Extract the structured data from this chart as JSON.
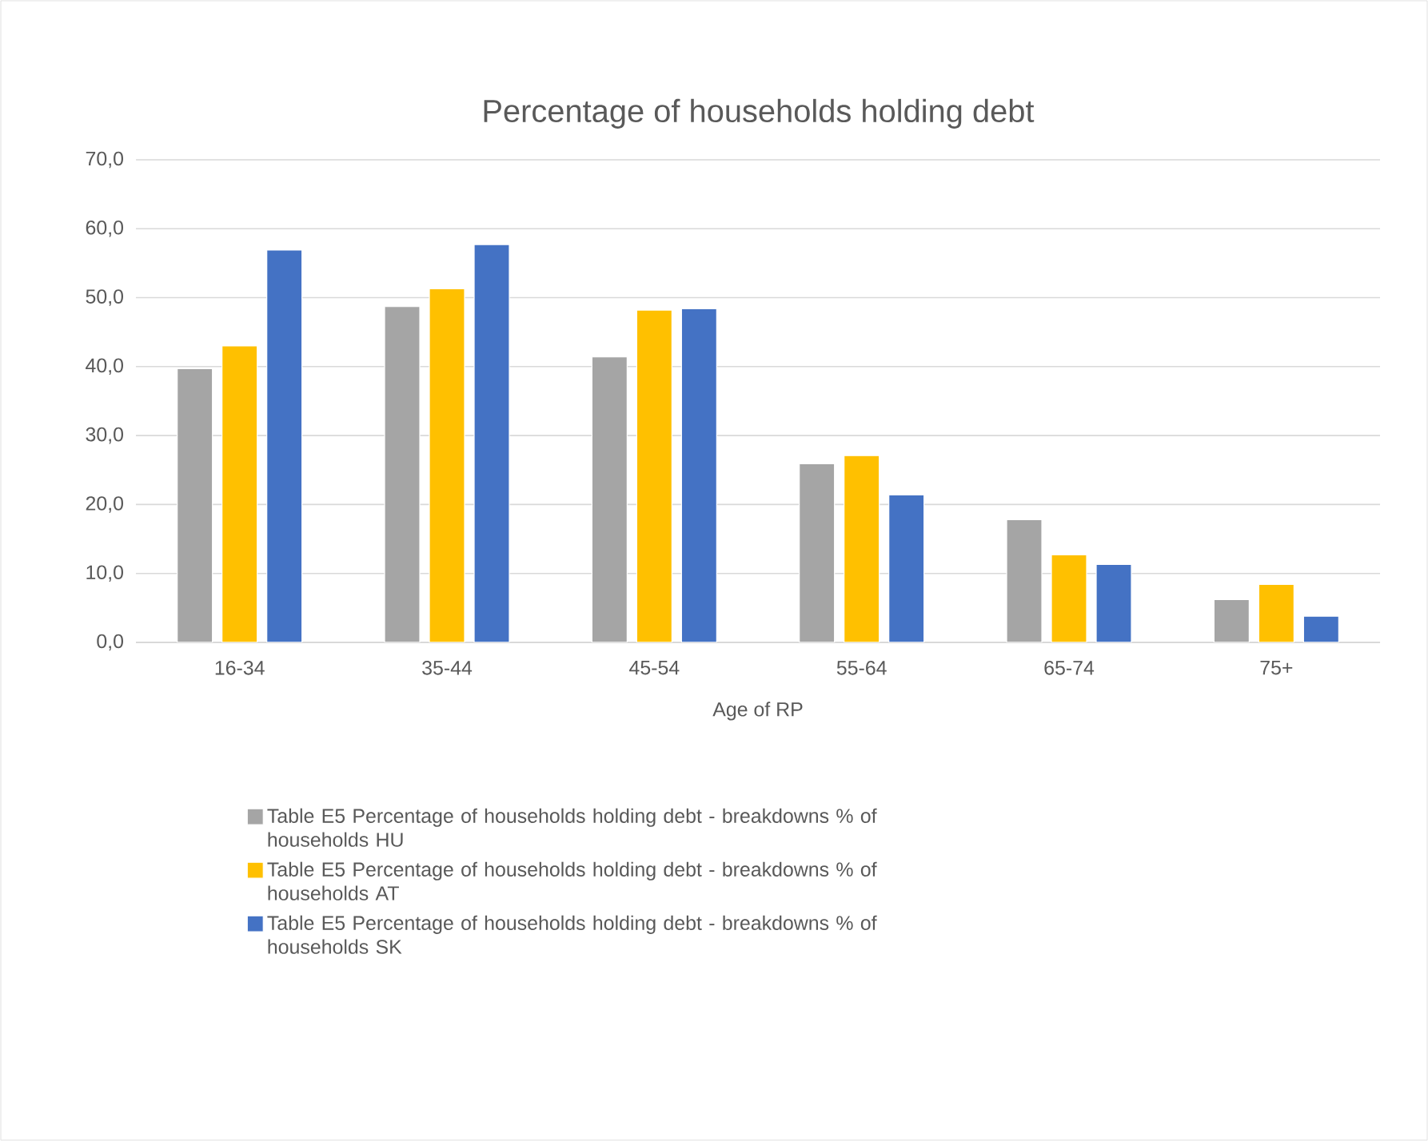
{
  "chart_data": {
    "type": "bar",
    "title": "Percentage of households holding debt",
    "xlabel": "Age of RP",
    "categories": [
      "16-34",
      "35-44",
      "45-54",
      "55-64",
      "65-74",
      "75+"
    ],
    "series": [
      {
        "name": "Table E5 Percentage of households holding debt - breakdowns % of households HU",
        "color": "#a5a5a5",
        "values": [
          39.7,
          48.7,
          41.4,
          25.9,
          17.8,
          6.2
        ]
      },
      {
        "name": "Table E5 Percentage of households holding debt - breakdowns % of households AT",
        "color": "#ffc000",
        "values": [
          43.0,
          51.3,
          48.2,
          27.1,
          12.7,
          8.4
        ]
      },
      {
        "name": "Table E5 Percentage of households holding debt - breakdowns % of households SK",
        "color": "#4472c4",
        "values": [
          56.9,
          57.7,
          48.4,
          21.4,
          11.3,
          3.8
        ]
      }
    ],
    "ylim": [
      0,
      70
    ],
    "yticks": [
      {
        "value": 0,
        "label": "0,0"
      },
      {
        "value": 10,
        "label": "10,0"
      },
      {
        "value": 20,
        "label": "20,0"
      },
      {
        "value": 30,
        "label": "30,0"
      },
      {
        "value": 40,
        "label": "40,0"
      },
      {
        "value": 50,
        "label": "50,0"
      },
      {
        "value": 60,
        "label": "60,0"
      },
      {
        "value": 70,
        "label": "70,0"
      }
    ],
    "grid": "y",
    "legend": "bottom"
  }
}
